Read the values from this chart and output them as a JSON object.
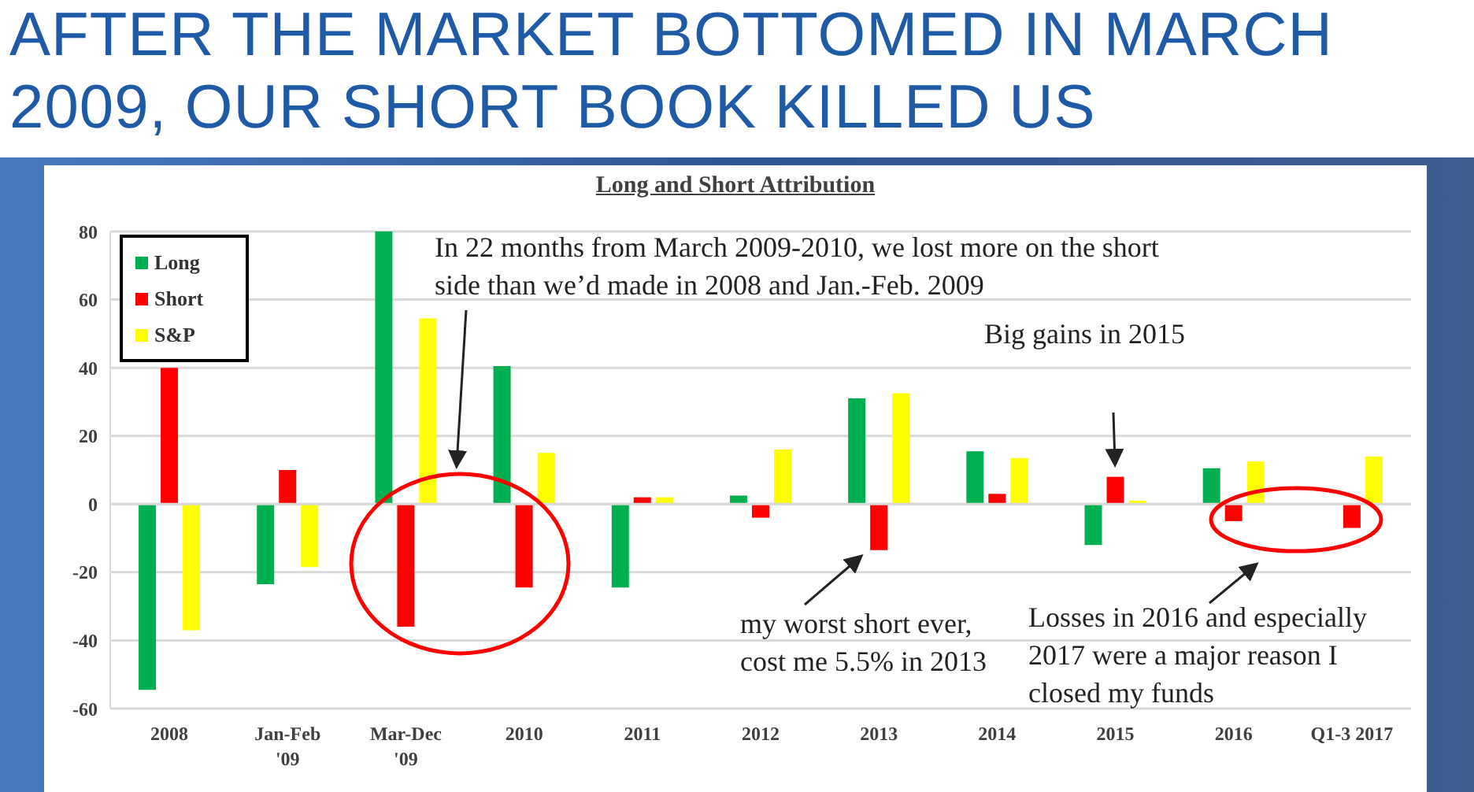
{
  "chart_data": {
    "type": "bar",
    "title": "AFTER THE MARKET BOTTOMED IN MARCH 2009, OUR SHORT BOOK KILLED US",
    "subtitle": "Long and Short Attribution",
    "categories": [
      "2008",
      "Jan-Feb\n'09",
      "Mar-Dec\n'09",
      "2010",
      "2011",
      "2012",
      "2013",
      "2014",
      "2015",
      "2016",
      "Q1-3 2017"
    ],
    "series": [
      {
        "name": "Long",
        "color": "#00b050",
        "values": [
          -54.5,
          -23.5,
          80,
          40.5,
          -24.5,
          2.5,
          31,
          15.5,
          -12,
          10.5,
          0
        ]
      },
      {
        "name": "Short",
        "color": "#ff0000",
        "values": [
          40,
          10,
          -36,
          -24.5,
          2,
          -4,
          -13.5,
          3,
          8,
          -5,
          -7
        ]
      },
      {
        "name": "S&P",
        "color": "#ffff00",
        "values": [
          -37,
          -18.5,
          54.5,
          15,
          2,
          16,
          32.5,
          13.5,
          1,
          12.5,
          14
        ]
      }
    ],
    "ylim": [
      -60,
      80
    ],
    "yticks": [
      -60,
      -40,
      -20,
      0,
      20,
      40,
      60,
      80
    ],
    "grid": "y",
    "legend": "top left",
    "annotations": [
      "In 22 months from March 2009-2010, we lost more on the short side than we’d made in 2008 and Jan.-Feb. 2009",
      "Big gains in 2015",
      "my worst short ever, cost me 5.5% in 2013",
      "Losses in 2016 and especially 2017 were a major reason I closed my funds"
    ]
  }
}
